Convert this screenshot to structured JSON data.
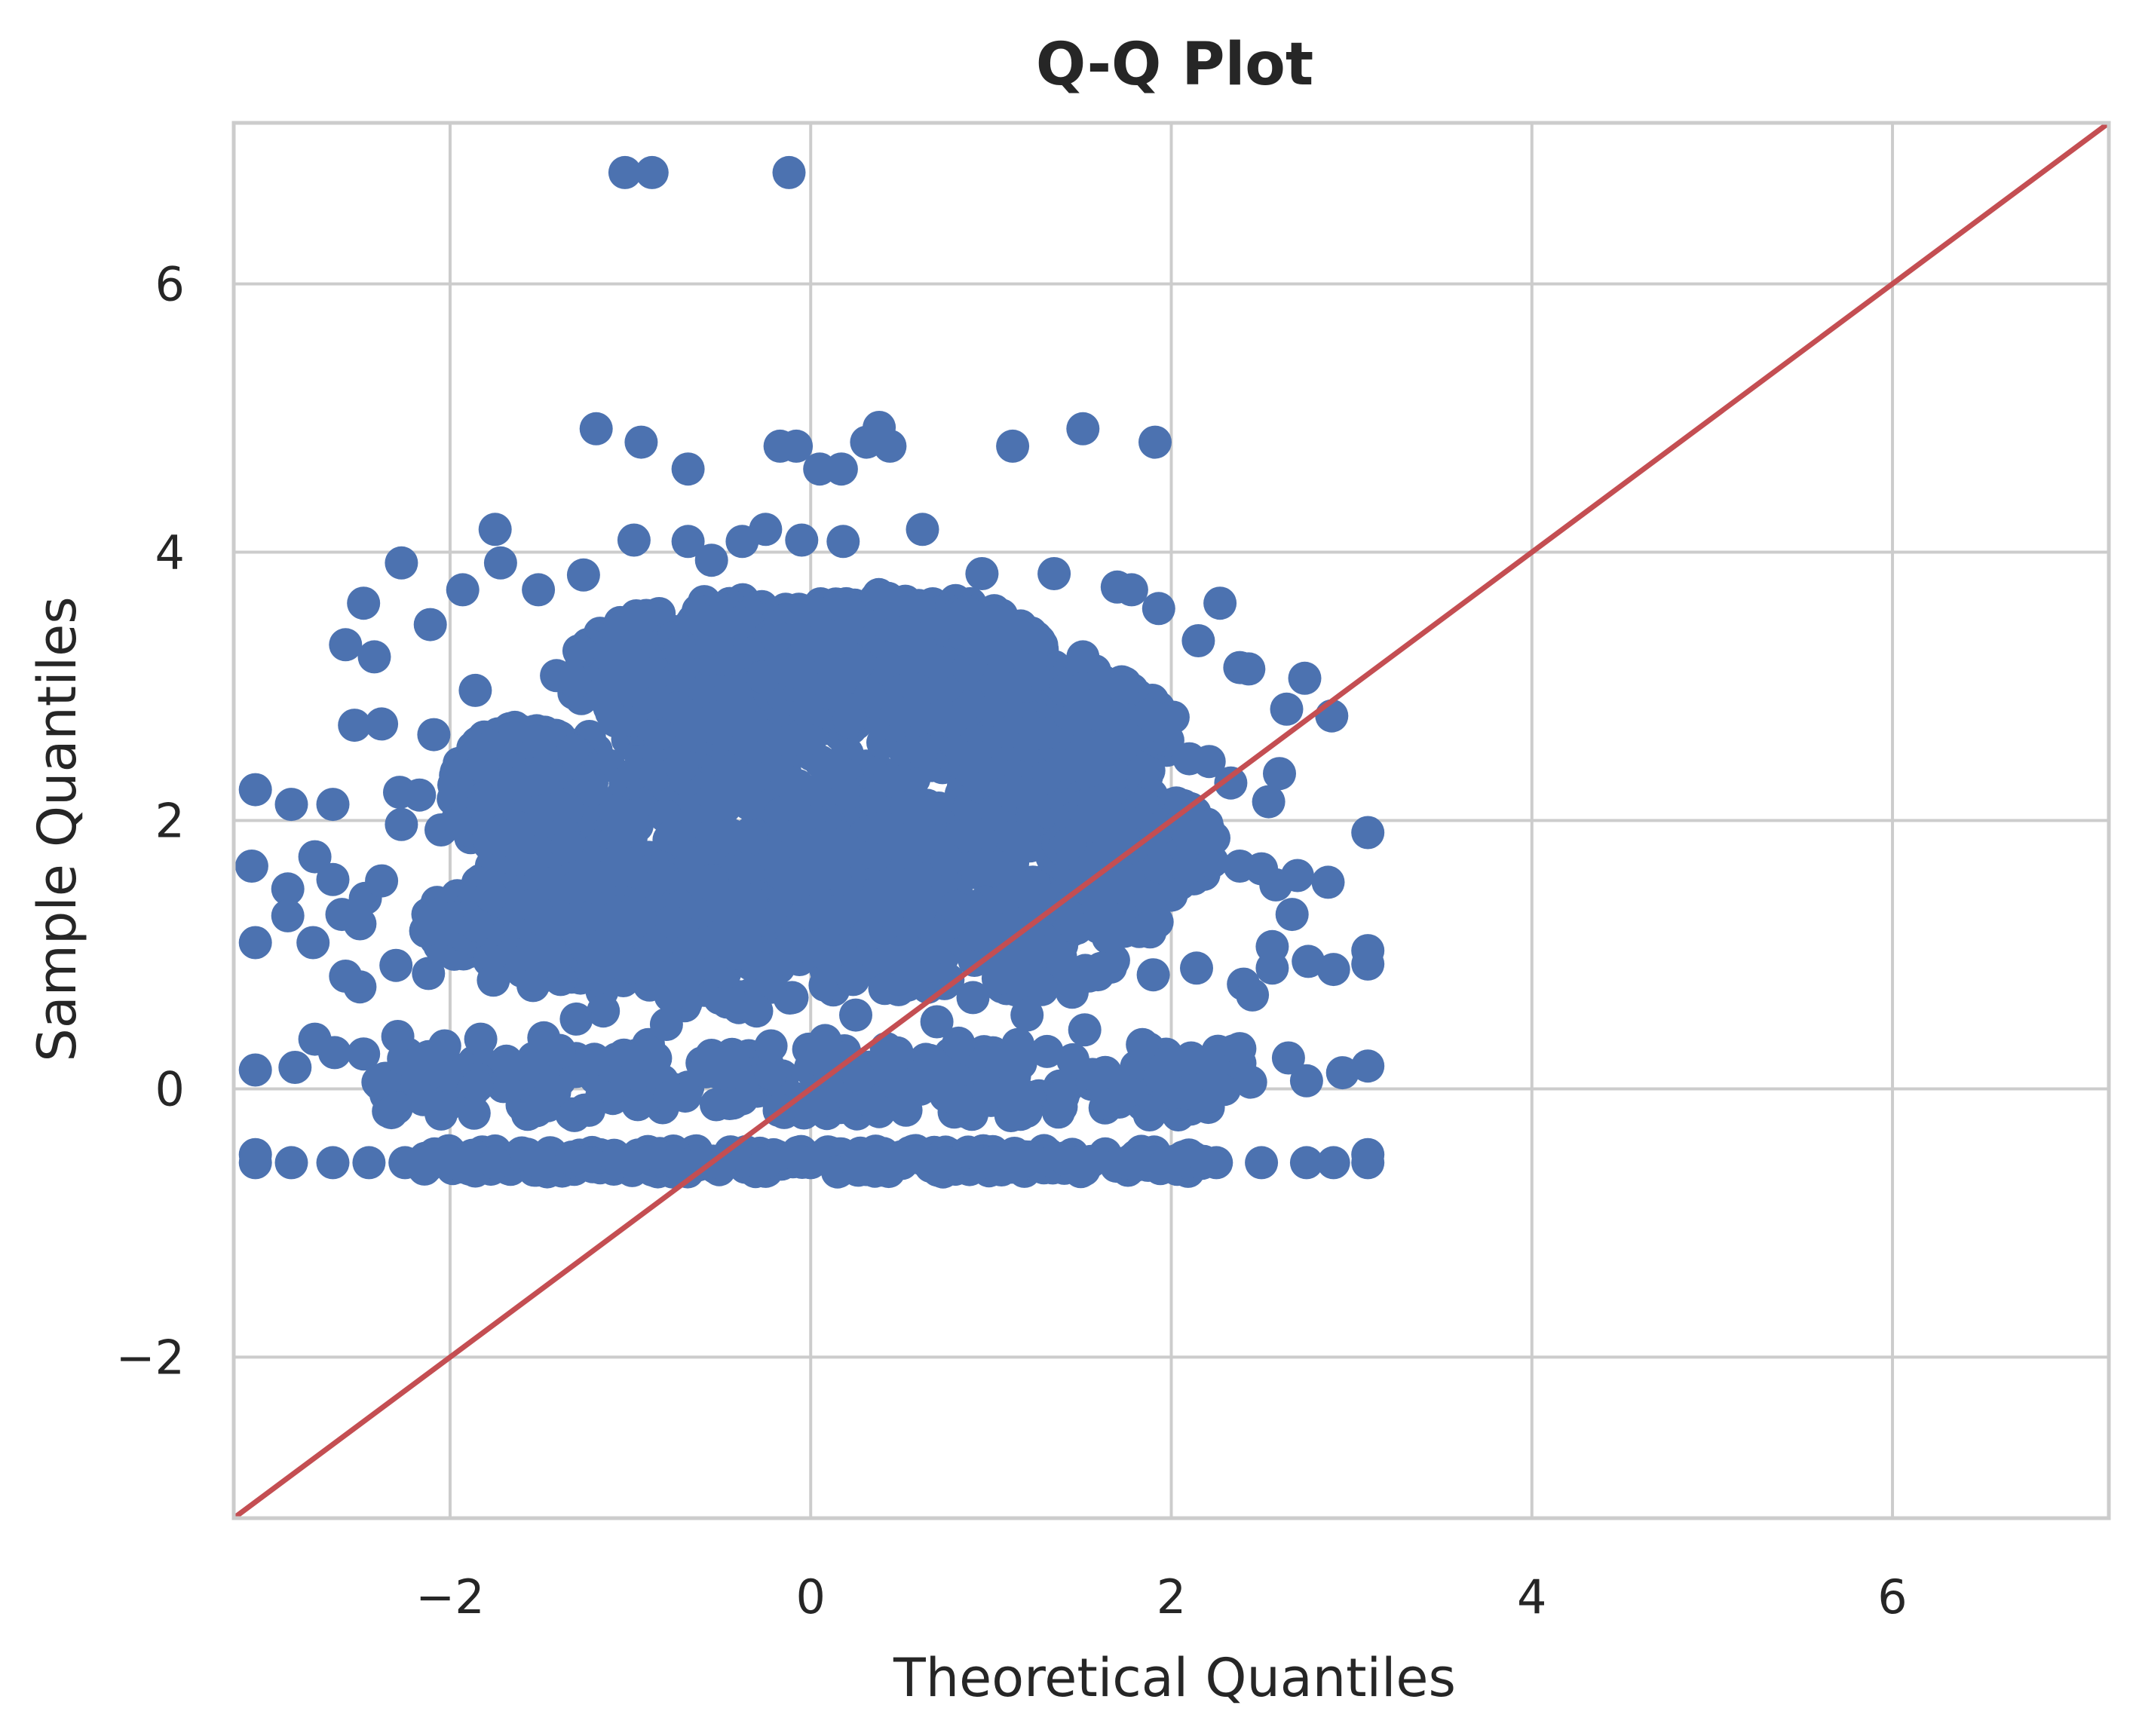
{
  "chart_data": {
    "type": "scatter",
    "title": "Q-Q Plot",
    "xlabel": "Theoretical Quantiles",
    "ylabel": "Sample Quantiles",
    "xlim": [
      -3.2,
      7.2
    ],
    "ylim": [
      -3.2,
      7.2
    ],
    "xticks": [
      -2,
      0,
      2,
      4,
      6
    ],
    "yticks": [
      -2,
      0,
      2,
      4,
      6
    ],
    "xtick_labels": [
      "−2",
      "0",
      "2",
      "4",
      "6"
    ],
    "ytick_labels": [
      "−2",
      "0",
      "2",
      "4",
      "6"
    ],
    "grid": true,
    "colors": {
      "points": "#4c72b0",
      "reference_line": "#c44e52",
      "grid": "#cccccc",
      "spine": "#cccccc"
    },
    "series": [
      {
        "kind": "points",
        "points": [
          [
            -1.03,
            6.83
          ],
          [
            -0.88,
            6.83
          ],
          [
            -0.12,
            6.83
          ],
          [
            -1.19,
            4.92
          ],
          [
            -0.94,
            4.82
          ],
          [
            -0.68,
            4.62
          ],
          [
            -0.17,
            4.79
          ],
          [
            -0.08,
            4.79
          ],
          [
            0.05,
            4.62
          ],
          [
            0.17,
            4.62
          ],
          [
            0.31,
            4.82
          ],
          [
            0.38,
            4.93
          ],
          [
            0.44,
            4.79
          ],
          [
            1.12,
            4.79
          ],
          [
            1.51,
            4.92
          ],
          [
            1.91,
            4.82
          ],
          [
            -1.75,
            4.17
          ],
          [
            -0.98,
            4.09
          ],
          [
            -0.68,
            4.08
          ],
          [
            -0.38,
            4.08
          ],
          [
            -0.25,
            4.17
          ],
          [
            -0.05,
            4.09
          ],
          [
            0.18,
            4.08
          ],
          [
            0.62,
            4.17
          ],
          [
            -2.27,
            3.92
          ],
          [
            -1.72,
            3.92
          ],
          [
            -1.26,
            3.83
          ],
          [
            -0.55,
            3.94
          ],
          [
            0.95,
            3.84
          ],
          [
            1.35,
            3.84
          ],
          [
            -2.48,
            3.62
          ],
          [
            -1.93,
            3.72
          ],
          [
            -1.51,
            3.72
          ],
          [
            1.7,
            3.74
          ],
          [
            1.78,
            3.72
          ],
          [
            1.93,
            3.58
          ],
          [
            2.27,
            3.62
          ],
          [
            -2.58,
            3.31
          ],
          [
            -2.42,
            3.22
          ],
          [
            -2.11,
            3.46
          ],
          [
            2.15,
            3.34
          ],
          [
            2.38,
            3.14
          ],
          [
            2.43,
            3.13
          ],
          [
            -1.86,
            2.97
          ],
          [
            -1.41,
            3.08
          ],
          [
            1.51,
            3.22
          ],
          [
            1.88,
            2.79
          ],
          [
            2.01,
            2.77
          ],
          [
            -2.53,
            2.71
          ],
          [
            -2.38,
            2.72
          ],
          [
            -2.09,
            2.64
          ],
          [
            2.64,
            2.83
          ],
          [
            2.74,
            3.06
          ],
          [
            2.89,
            2.78
          ],
          [
            -2.28,
            2.21
          ],
          [
            -2.17,
            2.19
          ],
          [
            2.1,
            2.46
          ],
          [
            2.21,
            2.44
          ],
          [
            2.33,
            2.28
          ],
          [
            2.54,
            2.14
          ],
          [
            2.6,
            2.35
          ],
          [
            -2.27,
            1.97
          ],
          [
            -2.05,
            1.93
          ],
          [
            1.92,
            1.93
          ],
          [
            2.13,
            1.88
          ],
          [
            -3.08,
            2.23
          ],
          [
            -2.88,
            2.12
          ],
          [
            -2.65,
            2.12
          ],
          [
            3.09,
            1.91
          ],
          [
            -3.1,
            1.66
          ],
          [
            -2.9,
            1.49
          ],
          [
            -2.75,
            1.73
          ],
          [
            -2.65,
            1.56
          ],
          [
            -2.47,
            1.42
          ],
          [
            -2.38,
            1.55
          ],
          [
            2.38,
            1.66
          ],
          [
            2.5,
            1.64
          ],
          [
            2.58,
            1.52
          ],
          [
            2.7,
            1.59
          ],
          [
            2.87,
            1.54
          ],
          [
            -3.08,
            1.09
          ],
          [
            -2.9,
            1.29
          ],
          [
            -2.76,
            1.09
          ],
          [
            -2.6,
            1.3
          ],
          [
            -2.5,
            1.23
          ],
          [
            2.56,
            1.06
          ],
          [
            2.67,
            1.3
          ],
          [
            2.76,
            0.95
          ],
          [
            2.9,
            0.89
          ],
          [
            3.09,
            1.03
          ],
          [
            3.09,
            0.93
          ],
          [
            -2.58,
            0.84
          ],
          [
            -2.5,
            0.76
          ],
          [
            -2.3,
            0.92
          ],
          [
            -2.12,
            0.86
          ],
          [
            -1.76,
            0.81
          ],
          [
            -1.54,
            0.77
          ],
          [
            -1.15,
            0.58
          ],
          [
            0.9,
            0.68
          ],
          [
            1.45,
            0.72
          ],
          [
            1.9,
            0.85
          ],
          [
            2.14,
            0.9
          ],
          [
            2.4,
            0.78
          ],
          [
            2.45,
            0.7
          ],
          [
            2.56,
            0.9
          ],
          [
            -3.08,
            0.14
          ],
          [
            -2.86,
            0.16
          ],
          [
            -2.75,
            0.37
          ],
          [
            -2.64,
            0.27
          ],
          [
            -2.48,
            0.26
          ],
          [
            -2.29,
            0.39
          ],
          [
            -2.03,
            0.32
          ],
          [
            -1.83,
            0.37
          ],
          [
            -1.48,
            0.38
          ],
          [
            -1.2,
            0.22
          ],
          [
            -0.9,
            0.33
          ],
          [
            -0.55,
            0.25
          ],
          [
            -0.22,
            0.32
          ],
          [
            0.08,
            0.36
          ],
          [
            0.42,
            0.3
          ],
          [
            0.82,
            0.34
          ],
          [
            1.15,
            0.33
          ],
          [
            1.52,
            0.44
          ],
          [
            1.84,
            0.33
          ],
          [
            2.11,
            0.23
          ],
          [
            2.38,
            0.3
          ],
          [
            2.65,
            0.23
          ],
          [
            2.95,
            0.12
          ],
          [
            3.09,
            0.17
          ],
          [
            -2.4,
            0.05
          ],
          [
            -2.15,
            -0.08
          ],
          [
            -1.85,
            0.02
          ],
          [
            -1.57,
            -0.19
          ],
          [
            -1.23,
            -0.16
          ],
          [
            -0.78,
            -0.06
          ],
          [
            -0.45,
            -0.11
          ],
          [
            0.05,
            -0.1
          ],
          [
            0.38,
            -0.17
          ],
          [
            0.75,
            -0.05
          ],
          [
            1.08,
            -0.03
          ],
          [
            1.4,
            -0.05
          ],
          [
            1.75,
            -0.02
          ],
          [
            2.08,
            -0.03
          ],
          [
            2.44,
            0.05
          ],
          [
            2.75,
            0.06
          ],
          [
            -1.3,
            0.52
          ],
          [
            -0.8,
            0.48
          ],
          [
            -0.3,
            0.58
          ],
          [
            0.25,
            0.55
          ],
          [
            0.7,
            0.5
          ],
          [
            1.2,
            0.55
          ],
          [
            -3.08,
            -0.55
          ],
          [
            -2.88,
            -0.55
          ],
          [
            -2.65,
            -0.55
          ],
          [
            -2.45,
            -0.55
          ],
          [
            -2.25,
            -0.55
          ],
          [
            -2.0,
            -0.55
          ],
          [
            -1.75,
            -0.55
          ],
          [
            -1.5,
            -0.55
          ],
          [
            -1.25,
            -0.55
          ],
          [
            -1.0,
            -0.55
          ],
          [
            -0.75,
            -0.55
          ],
          [
            -0.5,
            -0.55
          ],
          [
            -0.25,
            -0.55
          ],
          [
            0.0,
            -0.55
          ],
          [
            0.25,
            -0.55
          ],
          [
            0.5,
            -0.55
          ],
          [
            0.75,
            -0.55
          ],
          [
            1.0,
            -0.55
          ],
          [
            1.25,
            -0.55
          ],
          [
            1.5,
            -0.55
          ],
          [
            1.75,
            -0.55
          ],
          [
            2.0,
            -0.55
          ],
          [
            2.25,
            -0.55
          ],
          [
            2.5,
            -0.55
          ],
          [
            2.75,
            -0.55
          ],
          [
            2.9,
            -0.55
          ],
          [
            3.09,
            -0.55
          ],
          [
            -3.08,
            -0.49
          ],
          [
            3.09,
            -0.49
          ]
        ],
        "dense_regions": [
          {
            "x": [
              -2.2,
              2.2
            ],
            "y": [
              -0.62,
              -0.46
            ],
            "shape": "band"
          },
          {
            "x": [
              -2.4,
              2.4
            ],
            "y": [
              -0.2,
              0.3
            ],
            "shape": "band"
          },
          {
            "center": [
              0.2,
              2.2
            ],
            "radius": [
              1.55,
              1.25
            ],
            "shape": "ellipse"
          },
          {
            "center": [
              -0.5,
              1.6
            ],
            "radius": [
              1.35,
              1.0
            ],
            "shape": "ellipse"
          },
          {
            "center": [
              0.9,
              1.4
            ],
            "radius": [
              1.05,
              0.75
            ],
            "shape": "ellipse"
          },
          {
            "center": [
              -1.2,
              1.25
            ],
            "radius": [
              0.95,
              0.45
            ],
            "shape": "ellipse"
          },
          {
            "center": [
              1.4,
              2.6
            ],
            "radius": [
              0.6,
              0.55
            ],
            "shape": "ellipse"
          },
          {
            "center": [
              -0.4,
              3.1
            ],
            "radius": [
              0.95,
              0.55
            ],
            "shape": "ellipse"
          },
          {
            "center": [
              0.5,
              3.2
            ],
            "radius": [
              0.8,
              0.5
            ],
            "shape": "ellipse"
          },
          {
            "center": [
              -1.6,
              2.2
            ],
            "radius": [
              0.4,
              0.5
            ],
            "shape": "ellipse"
          },
          {
            "center": [
              1.8,
              1.8
            ],
            "radius": [
              0.45,
              0.4
            ],
            "shape": "ellipse"
          }
        ]
      },
      {
        "kind": "line",
        "x": [
          -3.2,
          7.2
        ],
        "y": [
          -3.2,
          7.2
        ]
      }
    ]
  }
}
